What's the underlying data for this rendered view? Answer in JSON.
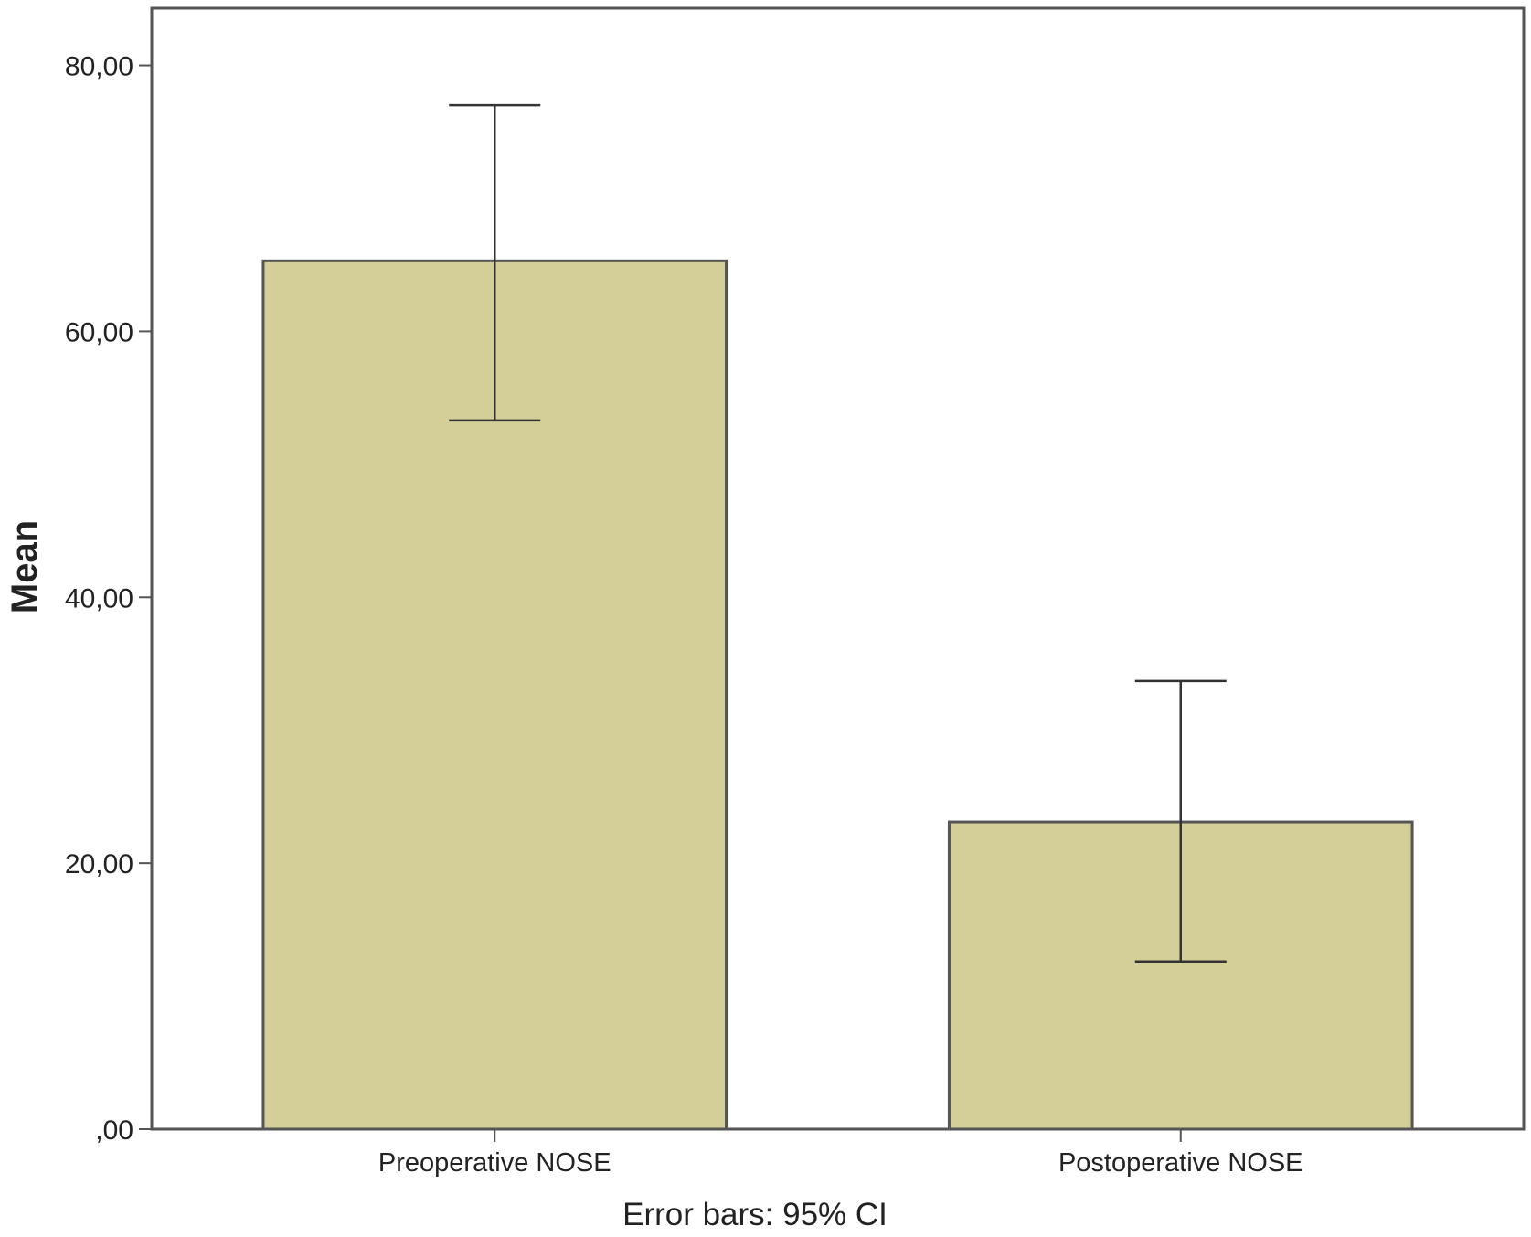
{
  "chart_data": {
    "type": "bar",
    "categories": [
      "Preoperative NOSE",
      "Postoperative NOSE"
    ],
    "values": [
      65.3,
      23.1
    ],
    "error_bars": [
      {
        "lower": 53.3,
        "upper": 77.0
      },
      {
        "lower": 12.6,
        "upper": 33.7
      }
    ],
    "ylabel": "Mean",
    "xlabel": "",
    "yticks": [
      {
        "value": 0,
        "label": ",00"
      },
      {
        "value": 20,
        "label": "20,00"
      },
      {
        "value": 40,
        "label": "40,00"
      },
      {
        "value": 60,
        "label": "60,00"
      },
      {
        "value": 80,
        "label": "80,00"
      }
    ],
    "ylim": [
      0,
      84.3
    ],
    "note": "Error bars: 95% CI",
    "grid": false,
    "colors": {
      "bar_fill": "#d4cf98",
      "bar_stroke": "#555555",
      "axis": "#555555",
      "error_bar": "#333333"
    }
  }
}
